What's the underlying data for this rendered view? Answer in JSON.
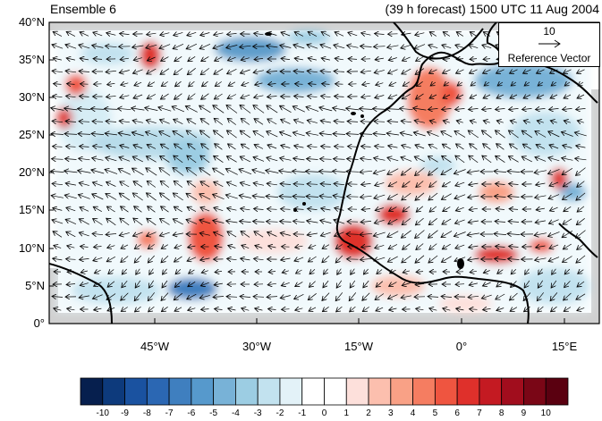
{
  "title_left": "Ensemble 6",
  "title_right": "(39 h forecast) 1500 UTC 11 Aug 2004",
  "lat_labels": [
    "40°N",
    "35°N",
    "30°N",
    "25°N",
    "20°N",
    "15°N",
    "10°N",
    "5°N",
    "0°"
  ],
  "lon_labels": [
    "45°W",
    "30°W",
    "15°W",
    "0°",
    "15°E"
  ],
  "reference_vector": {
    "magnitude": "10",
    "label": "Reference Vector"
  },
  "colorbar": {
    "labels": [
      "-10",
      "-9",
      "-8",
      "-7",
      "-6",
      "-5",
      "-4",
      "-3",
      "-2",
      "-1",
      "0",
      "1",
      "2",
      "3",
      "4",
      "5",
      "6",
      "7",
      "8",
      "9",
      "10"
    ],
    "colors": [
      "#061f4e",
      "#0d3a7c",
      "#1a52a0",
      "#2b67b3",
      "#3f7fbf",
      "#5699cc",
      "#78b2d7",
      "#9ccde3",
      "#c2e2ef",
      "#e3f2f8",
      "#ffffff",
      "#ffffff",
      "#fde0db",
      "#fcbfae",
      "#f9a186",
      "#f57d61",
      "#ef5540",
      "#df302b",
      "#c41a22",
      "#a10d1d",
      "#7a0616",
      "#5a0010"
    ]
  }
}
